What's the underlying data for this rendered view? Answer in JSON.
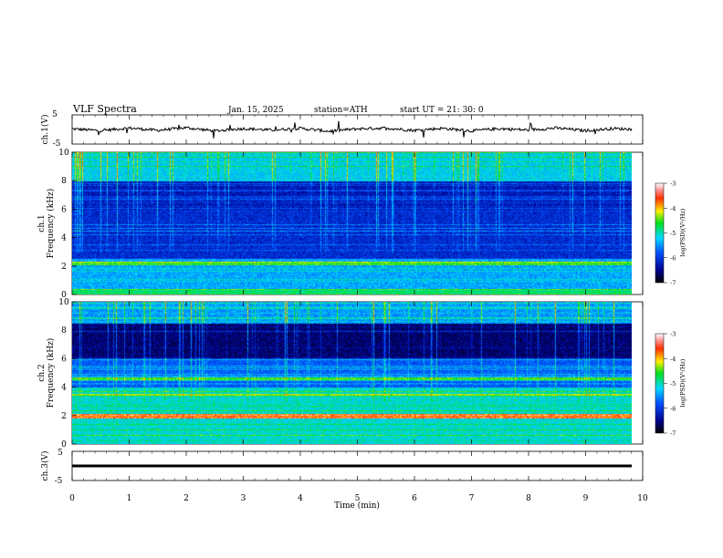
{
  "header": {
    "title": "VLF  Spectra",
    "date": "Jan. 15, 2025",
    "station": "station=ATH",
    "start": "start  UT  =    21: 30: 0"
  },
  "chart_data": [
    {
      "type": "line",
      "name": "ch1-waveform",
      "ylabel": "ch.1(V)",
      "ylim": [
        -5,
        5
      ],
      "yticks": [
        "5",
        "-5"
      ],
      "x": [
        0,
        0.5,
        1,
        1.5,
        2,
        2.5,
        3,
        3.5,
        4,
        4.5,
        5,
        5.5,
        6,
        6.5,
        7,
        7.5,
        8,
        8.5,
        9,
        9.5,
        9.83
      ],
      "y": [
        0.2,
        -0.4,
        0.5,
        -0.3,
        0.6,
        -0.5,
        0.3,
        -0.2,
        0.4,
        -0.6,
        0.2,
        0.5,
        -0.3,
        0.4,
        -0.5,
        0.3,
        -0.2,
        0.5,
        -0.4,
        0.3,
        0.1
      ]
    },
    {
      "type": "heatmap",
      "name": "ch1-spectrogram",
      "ylabel": "ch.1\nFrequency (kHz)",
      "xlim": [
        0,
        10
      ],
      "ylim": [
        0,
        10
      ],
      "yticks": [
        "0",
        "2",
        "4",
        "6",
        "8",
        "10"
      ],
      "colorbar": {
        "label": "log(PSD)(V²/Hz)",
        "range": [
          -7,
          -3
        ],
        "ticks": [
          "-3",
          "-4",
          "-5",
          "-6",
          "-7"
        ]
      }
    },
    {
      "type": "heatmap",
      "name": "ch2-spectrogram",
      "ylabel": "ch.2\nFrequency (kHz)",
      "xlim": [
        0,
        10
      ],
      "ylim": [
        0,
        10
      ],
      "yticks": [
        "0",
        "2",
        "4",
        "6",
        "8",
        "10"
      ],
      "colorbar": {
        "label": "log(PSD)(V²/Hz)",
        "range": [
          -7,
          -3
        ],
        "ticks": [
          "-3",
          "-4",
          "-5",
          "-6",
          "-7"
        ]
      }
    },
    {
      "type": "line",
      "name": "ch3-waveform",
      "ylabel": "ch.3(V)",
      "ylim": [
        -5,
        5
      ],
      "yticks": [
        "5",
        "-5"
      ],
      "x": [
        0,
        9.83
      ],
      "y": [
        0,
        0
      ]
    }
  ],
  "xaxis": {
    "label": "Time  (min)",
    "ticks": [
      "0",
      "1",
      "2",
      "3",
      "4",
      "5",
      "6",
      "7",
      "8",
      "9",
      "10"
    ]
  }
}
